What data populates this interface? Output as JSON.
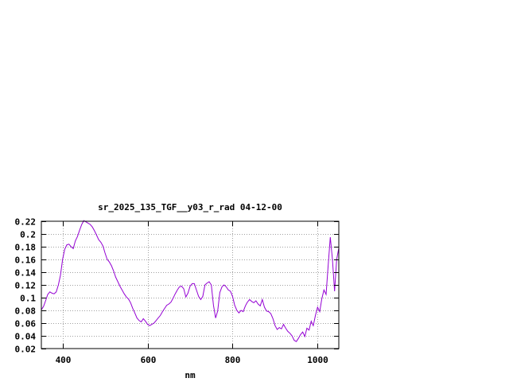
{
  "chart_data": {
    "type": "line",
    "title": "sr_2025_135_TGF__y03_r_rad 04-12-00",
    "xlabel": "nm",
    "ylabel": "",
    "xlim": [
      350,
      1050
    ],
    "ylim": [
      0.02,
      0.22
    ],
    "xticks": [
      400,
      600,
      800,
      1000
    ],
    "yticks": [
      0.02,
      0.04,
      0.06,
      0.08,
      0.1,
      0.12,
      0.14,
      0.16,
      0.18,
      0.2,
      0.22
    ],
    "ytick_labels": [
      "0.02",
      "0.04",
      "0.06",
      "0.08",
      "0.1",
      "0.12",
      "0.14",
      "0.16",
      "0.18",
      "0.2",
      "0.22"
    ],
    "grid": true,
    "series": [
      {
        "color": "#9400d3",
        "points": [
          [
            350,
            0.081
          ],
          [
            355,
            0.086
          ],
          [
            360,
            0.095
          ],
          [
            365,
            0.105
          ],
          [
            370,
            0.109
          ],
          [
            375,
            0.107
          ],
          [
            380,
            0.106
          ],
          [
            385,
            0.109
          ],
          [
            390,
            0.12
          ],
          [
            395,
            0.135
          ],
          [
            400,
            0.16
          ],
          [
            405,
            0.176
          ],
          [
            410,
            0.183
          ],
          [
            415,
            0.184
          ],
          [
            420,
            0.18
          ],
          [
            425,
            0.177
          ],
          [
            430,
            0.189
          ],
          [
            435,
            0.196
          ],
          [
            440,
            0.206
          ],
          [
            445,
            0.215
          ],
          [
            450,
            0.221
          ],
          [
            455,
            0.219
          ],
          [
            460,
            0.217
          ],
          [
            465,
            0.215
          ],
          [
            470,
            0.211
          ],
          [
            475,
            0.205
          ],
          [
            480,
            0.198
          ],
          [
            485,
            0.191
          ],
          [
            490,
            0.187
          ],
          [
            495,
            0.181
          ],
          [
            500,
            0.17
          ],
          [
            505,
            0.16
          ],
          [
            510,
            0.156
          ],
          [
            515,
            0.15
          ],
          [
            520,
            0.142
          ],
          [
            525,
            0.132
          ],
          [
            530,
            0.125
          ],
          [
            535,
            0.118
          ],
          [
            540,
            0.112
          ],
          [
            545,
            0.106
          ],
          [
            550,
            0.101
          ],
          [
            555,
            0.098
          ],
          [
            560,
            0.092
          ],
          [
            565,
            0.083
          ],
          [
            570,
            0.076
          ],
          [
            575,
            0.068
          ],
          [
            580,
            0.064
          ],
          [
            585,
            0.062
          ],
          [
            590,
            0.067
          ],
          [
            595,
            0.063
          ],
          [
            600,
            0.058
          ],
          [
            605,
            0.056
          ],
          [
            610,
            0.058
          ],
          [
            615,
            0.06
          ],
          [
            620,
            0.064
          ],
          [
            625,
            0.068
          ],
          [
            630,
            0.072
          ],
          [
            635,
            0.078
          ],
          [
            640,
            0.083
          ],
          [
            645,
            0.088
          ],
          [
            650,
            0.09
          ],
          [
            655,
            0.093
          ],
          [
            660,
            0.099
          ],
          [
            665,
            0.106
          ],
          [
            670,
            0.112
          ],
          [
            675,
            0.117
          ],
          [
            680,
            0.118
          ],
          [
            685,
            0.114
          ],
          [
            690,
            0.101
          ],
          [
            695,
            0.107
          ],
          [
            700,
            0.118
          ],
          [
            705,
            0.122
          ],
          [
            710,
            0.122
          ],
          [
            715,
            0.112
          ],
          [
            720,
            0.102
          ],
          [
            725,
            0.097
          ],
          [
            730,
            0.102
          ],
          [
            735,
            0.12
          ],
          [
            740,
            0.123
          ],
          [
            745,
            0.125
          ],
          [
            750,
            0.12
          ],
          [
            755,
            0.088
          ],
          [
            760,
            0.068
          ],
          [
            765,
            0.079
          ],
          [
            770,
            0.108
          ],
          [
            775,
            0.117
          ],
          [
            780,
            0.12
          ],
          [
            785,
            0.117
          ],
          [
            790,
            0.112
          ],
          [
            795,
            0.11
          ],
          [
            800,
            0.102
          ],
          [
            805,
            0.088
          ],
          [
            810,
            0.08
          ],
          [
            815,
            0.076
          ],
          [
            820,
            0.08
          ],
          [
            825,
            0.078
          ],
          [
            830,
            0.087
          ],
          [
            835,
            0.093
          ],
          [
            840,
            0.097
          ],
          [
            845,
            0.094
          ],
          [
            850,
            0.092
          ],
          [
            855,
            0.095
          ],
          [
            860,
            0.09
          ],
          [
            865,
            0.087
          ],
          [
            870,
            0.097
          ],
          [
            875,
            0.085
          ],
          [
            880,
            0.079
          ],
          [
            885,
            0.078
          ],
          [
            890,
            0.075
          ],
          [
            895,
            0.067
          ],
          [
            900,
            0.056
          ],
          [
            905,
            0.05
          ],
          [
            910,
            0.053
          ],
          [
            915,
            0.051
          ],
          [
            920,
            0.058
          ],
          [
            925,
            0.052
          ],
          [
            930,
            0.047
          ],
          [
            935,
            0.044
          ],
          [
            940,
            0.04
          ],
          [
            945,
            0.033
          ],
          [
            950,
            0.031
          ],
          [
            955,
            0.036
          ],
          [
            960,
            0.042
          ],
          [
            965,
            0.046
          ],
          [
            970,
            0.039
          ],
          [
            975,
            0.052
          ],
          [
            980,
            0.049
          ],
          [
            985,
            0.063
          ],
          [
            990,
            0.056
          ],
          [
            995,
            0.072
          ],
          [
            1000,
            0.085
          ],
          [
            1005,
            0.078
          ],
          [
            1010,
            0.098
          ],
          [
            1015,
            0.112
          ],
          [
            1020,
            0.105
          ],
          [
            1025,
            0.15
          ],
          [
            1030,
            0.195
          ],
          [
            1035,
            0.16
          ],
          [
            1040,
            0.11
          ],
          [
            1045,
            0.16
          ],
          [
            1050,
            0.178
          ]
        ]
      }
    ]
  }
}
